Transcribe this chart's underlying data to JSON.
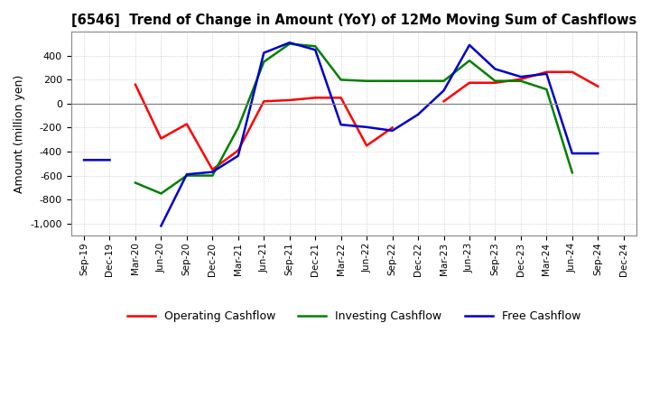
{
  "title": "[6546]  Trend of Change in Amount (YoY) of 12Mo Moving Sum of Cashflows",
  "ylabel": "Amount (million yen)",
  "x_labels": [
    "Sep-19",
    "Dec-19",
    "Mar-20",
    "Jun-20",
    "Sep-20",
    "Dec-20",
    "Mar-21",
    "Jun-21",
    "Sep-21",
    "Dec-21",
    "Mar-22",
    "Jun-22",
    "Sep-22",
    "Dec-22",
    "Mar-23",
    "Jun-23",
    "Sep-23",
    "Dec-23",
    "Mar-24",
    "Jun-24",
    "Sep-24",
    "Dec-24"
  ],
  "operating": [
    null,
    null,
    160,
    -290,
    -170,
    -550,
    -390,
    20,
    30,
    50,
    50,
    -350,
    -200,
    null,
    20,
    175,
    175,
    205,
    265,
    265,
    145,
    null
  ],
  "investing": [
    null,
    null,
    -660,
    -750,
    -600,
    -600,
    -200,
    350,
    500,
    480,
    200,
    190,
    190,
    190,
    190,
    360,
    190,
    190,
    120,
    -575,
    null,
    null
  ],
  "free": [
    -470,
    -470,
    null,
    -1020,
    -590,
    -570,
    -435,
    425,
    510,
    450,
    -175,
    -195,
    -225,
    -90,
    110,
    490,
    290,
    225,
    250,
    -415,
    -415,
    null
  ],
  "operating_color": "#ff0000",
  "investing_color": "#008000",
  "free_color": "#0000cd",
  "ylim": [
    -1100,
    600
  ],
  "yticks": [
    -1000,
    -800,
    -600,
    -400,
    -200,
    0,
    200,
    400
  ],
  "grid_color": "#aaaaaa"
}
